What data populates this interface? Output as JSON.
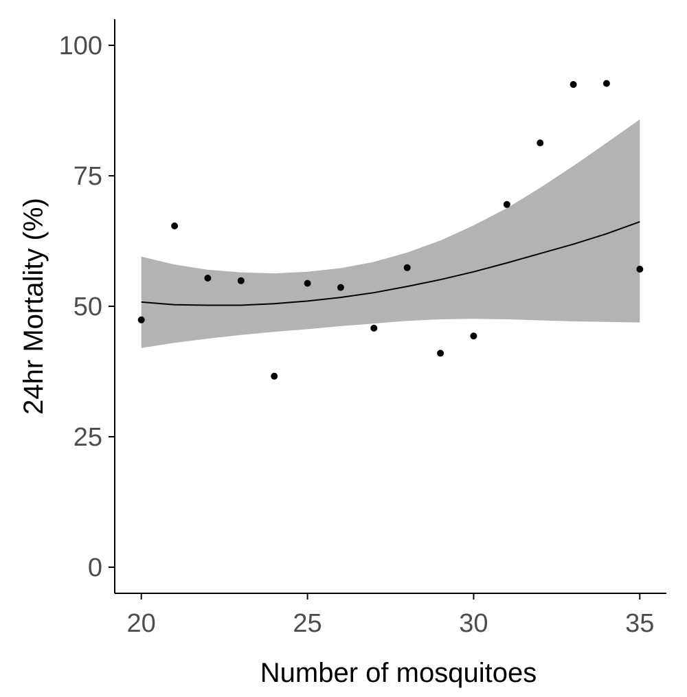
{
  "chart_data": {
    "type": "scatter",
    "title": "",
    "xlabel": "Number of mosquitoes",
    "ylabel": "24hr Mortality (%)",
    "xlim": [
      19.2,
      35.8
    ],
    "ylim": [
      -5,
      105
    ],
    "xticks": [
      20,
      25,
      30,
      35
    ],
    "yticks": [
      0,
      25,
      50,
      75,
      100
    ],
    "grid": false,
    "legend": "none",
    "points": {
      "x": [
        20,
        21,
        22,
        23,
        24,
        25,
        26,
        27,
        28,
        29,
        30,
        31,
        32,
        33,
        34,
        35
      ],
      "y": [
        47.4,
        65.4,
        55.4,
        54.9,
        36.6,
        54.4,
        53.6,
        45.8,
        57.4,
        41.0,
        44.3,
        69.5,
        81.3,
        92.5,
        92.7,
        57.1
      ]
    },
    "fit": {
      "x": [
        20,
        21,
        22,
        23,
        24,
        25,
        26,
        27,
        28,
        29,
        30,
        31,
        32,
        33,
        34,
        35
      ],
      "y": [
        50.8,
        50.3,
        50.2,
        50.2,
        50.5,
        51.0,
        51.7,
        52.6,
        53.8,
        55.1,
        56.6,
        58.3,
        60.1,
        61.9,
        63.9,
        66.2
      ],
      "lower": [
        42.0,
        43.0,
        43.8,
        44.5,
        45.1,
        45.6,
        46.2,
        46.7,
        47.2,
        47.5,
        47.6,
        47.5,
        47.3,
        47.1,
        47.0,
        46.9
      ],
      "upper": [
        59.5,
        58.0,
        57.0,
        56.5,
        56.3,
        56.6,
        57.3,
        58.5,
        60.3,
        62.6,
        65.5,
        68.8,
        72.7,
        76.9,
        81.3,
        85.8
      ]
    },
    "colors": {
      "points": "#000000",
      "fit_line": "#000000",
      "band": "#b3b3b3",
      "axis": "#000000",
      "tick_text": "#4d4d4d"
    }
  }
}
